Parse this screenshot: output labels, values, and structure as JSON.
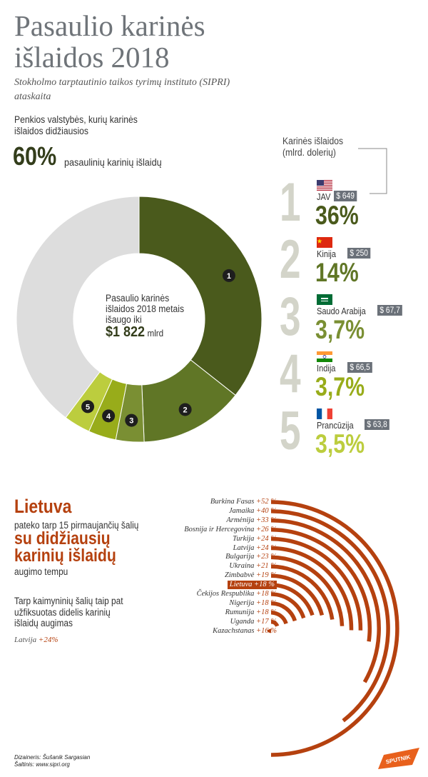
{
  "header": {
    "title_line1": "Pasaulio karinės",
    "title_line2": "išlaidos 2018",
    "subtitle": "Stokholmo tarptautinio taikos tyrimų instituto (SIPRI) ataskaita"
  },
  "top5": {
    "lead": "Penkios valstybės, kurių karinės išlaidos didžiausios",
    "share": "60%",
    "share_label": "pasaulinių karinių išlaidų",
    "legend_title_line1": "Karinės išlaidos",
    "legend_title_line2": "(mlrd. dolerių)"
  },
  "donut_center": {
    "line1": "Pasaulio karinės",
    "line2": "išlaidos 2018 metais",
    "line3": "išaugo iki",
    "value": "$1 822",
    "unit": "mlrd"
  },
  "chart_data": [
    {
      "type": "pie",
      "title": "Pasaulio karinės išlaidos 2018",
      "total_label": "$1 822 mlrd",
      "slices": [
        {
          "label": "1",
          "country": "JAV",
          "value": 649,
          "share_pct": 36,
          "color": "#4a5a1c"
        },
        {
          "label": "2",
          "country": "Kinija",
          "value": 250,
          "share_pct": 14,
          "color": "#607626"
        },
        {
          "label": "3",
          "country": "Saudo Arabija",
          "value": 67.7,
          "share_pct": 3.7,
          "color": "#7a8f33"
        },
        {
          "label": "4",
          "country": "Indija",
          "value": 66.5,
          "share_pct": 3.7,
          "color": "#98ac1a"
        },
        {
          "label": "5",
          "country": "Prancūzija",
          "value": 63.8,
          "share_pct": 3.5,
          "color": "#bccd3e"
        },
        {
          "label": "",
          "country": "",
          "value": 725,
          "share_pct": 40,
          "color": "#dddddd"
        }
      ]
    },
    {
      "type": "bar",
      "title": "Lietuva pateko tarp 15 pirmaujančių šalių su didžiausiu karinių išlaidų augimo tempu",
      "categories": [
        "Burkina Fasas",
        "Jamaika",
        "Armėnija",
        "Bosnija ir Hercegovina",
        "Turkija",
        "Latvija",
        "Bulgarija",
        "Ukraina",
        "Zimbabvė",
        "Lietuva",
        "Čekijos Respublika",
        "Nigerija",
        "Rumunija",
        "Uganda",
        "Kazachstanas"
      ],
      "values": [
        52,
        40,
        33,
        26,
        24,
        24,
        23,
        21,
        19,
        18,
        18,
        18,
        18,
        17,
        16
      ],
      "value_labels": [
        "+52 %",
        "+40 %",
        "+33 %",
        "+26 %",
        "+24 %",
        "+24 %",
        "+23 %",
        "+21 %",
        "+19 %",
        "+18 %",
        "+18 %",
        "+18 %",
        "+18 %",
        "+17 %",
        "+16 %"
      ],
      "highlight": "Lietuva",
      "color": "#b5410f"
    }
  ],
  "ranking": [
    {
      "rank": "1",
      "name": "JAV",
      "amount": "$ 649",
      "pct": "36%",
      "flag": "us",
      "pct_color": "#4a5a1c"
    },
    {
      "rank": "2",
      "name": "Kinija",
      "amount": "$ 250",
      "pct": "14%",
      "flag": "cn",
      "pct_color": "#607626"
    },
    {
      "rank": "3",
      "name": "Saudo Arabija",
      "amount": "$ 67,7",
      "pct": "3,7%",
      "flag": "sa",
      "pct_color": "#7a8f33"
    },
    {
      "rank": "4",
      "name": "Indija",
      "amount": "$ 66,5",
      "pct": "3,7%",
      "flag": "in",
      "pct_color": "#98ac1a"
    },
    {
      "rank": "5",
      "name": "Prancūzija",
      "amount": "$ 63,8",
      "pct": "3,5%",
      "flag": "fr",
      "pct_color": "#bccd3e"
    }
  ],
  "lithuania": {
    "title": "Lietuva",
    "text1": "pateko tarp 15 pirmaujančių šalių",
    "big_line1": "su didžiausių",
    "big_line2": "karinių išlaidų",
    "text2": "augimo tempu",
    "text3": "Tarp kaimyninių šalių taip pat užfiksuotas didelis karinių išlaidų augimas",
    "latvia_label": "Latvija",
    "latvia_value": "+24%"
  },
  "footer": {
    "designer": "Dizaineris: Šušanik Sargasian",
    "source": "Šaltinis: www.sipri.org",
    "logo": "SPUTNIK"
  }
}
